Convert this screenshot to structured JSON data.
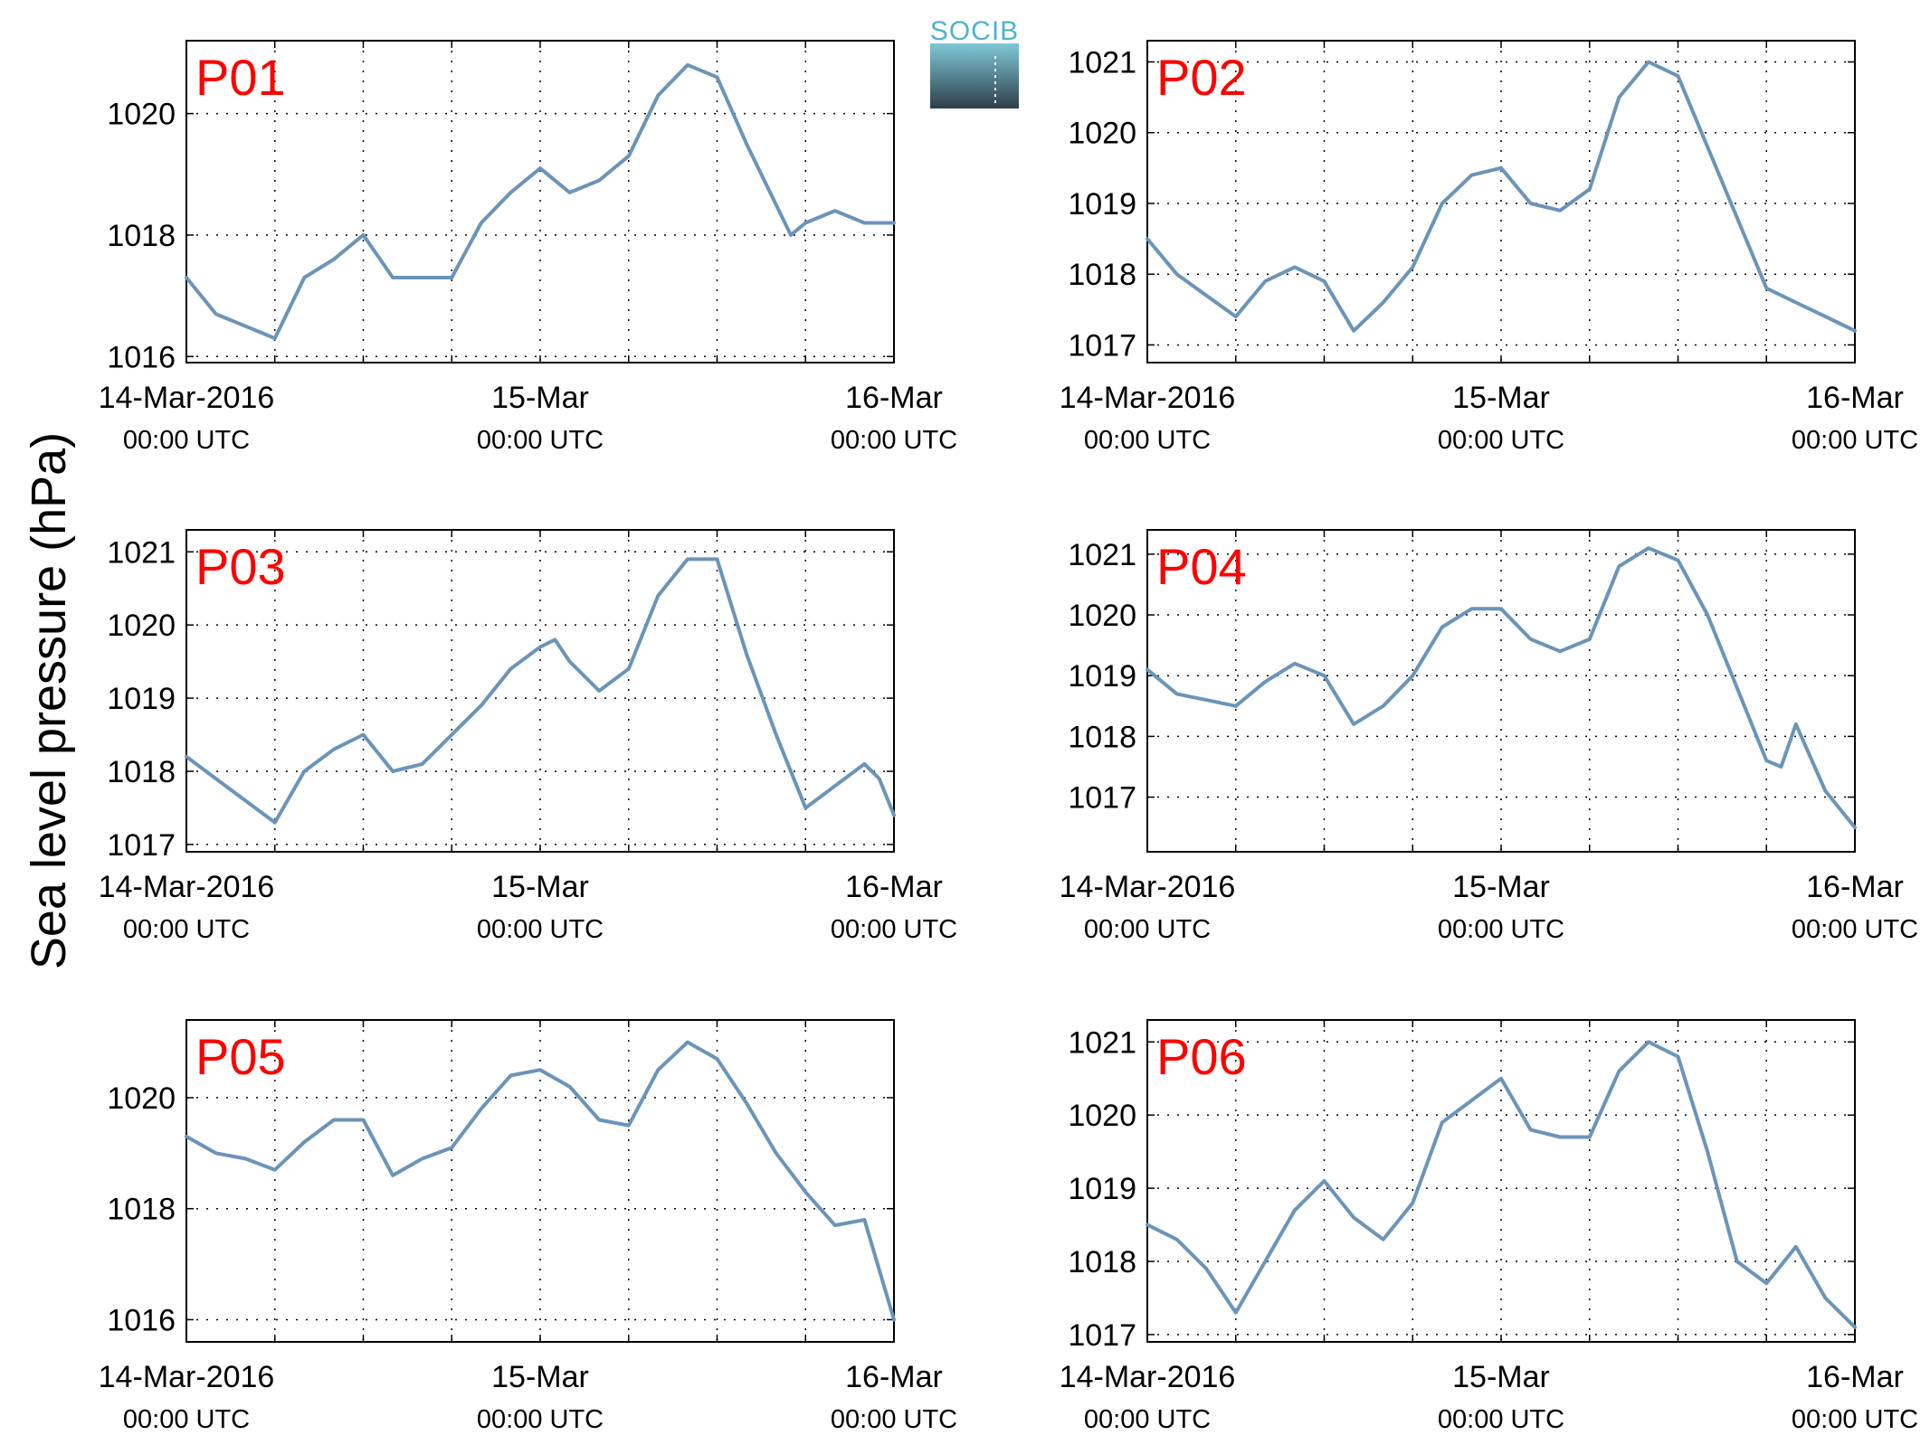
{
  "ylabel": "Sea level pressure (hPa)",
  "logo": {
    "text": "SOCIB",
    "text_color": "#4fb3c9",
    "top_color": "#7fc8d6",
    "bottom_color": "#2f3f4a"
  },
  "line_color": "#6b94b8",
  "chart_data": [
    {
      "type": "line",
      "panel": "P01",
      "ylim": [
        1015.9,
        1021.2
      ],
      "yticks": [
        1016,
        1018,
        1020
      ],
      "x_ticks": [
        {
          "date": "14-Mar-2016",
          "time": "00:00 UTC"
        },
        {
          "date": "15-Mar",
          "time": "00:00 UTC"
        },
        {
          "date": "16-Mar",
          "time": "00:00 UTC"
        }
      ],
      "x_hours": [
        0,
        6,
        12,
        18,
        24,
        30,
        36,
        42,
        48
      ],
      "series": [
        {
          "x": [
            0,
            2,
            4,
            6,
            8,
            10,
            12,
            14,
            16,
            18,
            20,
            22,
            24,
            26,
            28,
            30,
            32,
            34,
            36,
            38,
            40,
            41,
            42,
            44,
            46,
            48
          ],
          "y": [
            1017.3,
            1016.7,
            1016.5,
            1016.3,
            1017.3,
            1017.6,
            1018.0,
            1017.3,
            1017.3,
            1017.3,
            1018.2,
            1018.7,
            1019.1,
            1018.7,
            1018.9,
            1019.3,
            1020.3,
            1020.8,
            1020.6,
            1019.5,
            1018.5,
            1018.0,
            1018.2,
            1018.4,
            1018.2,
            1018.2
          ]
        }
      ]
    },
    {
      "type": "line",
      "panel": "P02",
      "ylim": [
        1016.75,
        1021.3
      ],
      "yticks": [
        1017,
        1018,
        1019,
        1020,
        1021
      ],
      "x_ticks": [
        {
          "date": "14-Mar-2016",
          "time": "00:00 UTC"
        },
        {
          "date": "15-Mar",
          "time": "00:00 UTC"
        },
        {
          "date": "16-Mar",
          "time": "00:00 UTC"
        }
      ],
      "x_hours": [
        0,
        6,
        12,
        18,
        24,
        30,
        36,
        42,
        48
      ],
      "series": [
        {
          "x": [
            0,
            2,
            4,
            6,
            8,
            10,
            12,
            14,
            16,
            18,
            20,
            22,
            24,
            26,
            28,
            30,
            32,
            34,
            36,
            38,
            40,
            42,
            44,
            46,
            48
          ],
          "y": [
            1018.5,
            1018.0,
            1017.7,
            1017.4,
            1017.9,
            1018.1,
            1017.9,
            1017.2,
            1017.6,
            1018.1,
            1019.0,
            1019.4,
            1019.5,
            1019.0,
            1018.9,
            1019.2,
            1020.5,
            1021.0,
            1020.8,
            1019.8,
            1018.8,
            1017.8,
            1017.6,
            1017.4,
            1017.2
          ]
        }
      ]
    },
    {
      "type": "line",
      "panel": "P03",
      "ylim": [
        1016.9,
        1021.3
      ],
      "yticks": [
        1017,
        1018,
        1019,
        1020,
        1021
      ],
      "x_ticks": [
        {
          "date": "14-Mar-2016",
          "time": "00:00 UTC"
        },
        {
          "date": "15-Mar",
          "time": "00:00 UTC"
        },
        {
          "date": "16-Mar",
          "time": "00:00 UTC"
        }
      ],
      "x_hours": [
        0,
        6,
        12,
        18,
        24,
        30,
        36,
        42,
        48
      ],
      "series": [
        {
          "x": [
            0,
            2,
            4,
            6,
            8,
            10,
            12,
            14,
            16,
            18,
            20,
            22,
            24,
            25,
            26,
            28,
            30,
            32,
            34,
            36,
            38,
            40,
            42,
            44,
            46,
            47,
            48
          ],
          "y": [
            1018.2,
            1017.9,
            1017.6,
            1017.3,
            1018.0,
            1018.3,
            1018.5,
            1018.0,
            1018.1,
            1018.5,
            1018.9,
            1019.4,
            1019.7,
            1019.8,
            1019.5,
            1019.1,
            1019.4,
            1020.4,
            1020.9,
            1020.9,
            1019.6,
            1018.5,
            1017.5,
            1017.8,
            1018.1,
            1017.9,
            1017.4
          ]
        }
      ]
    },
    {
      "type": "line",
      "panel": "P04",
      "ylim": [
        1016.1,
        1021.4
      ],
      "yticks": [
        1017,
        1018,
        1019,
        1020,
        1021
      ],
      "x_ticks": [
        {
          "date": "14-Mar-2016",
          "time": "00:00 UTC"
        },
        {
          "date": "15-Mar",
          "time": "00:00 UTC"
        },
        {
          "date": "16-Mar",
          "time": "00:00 UTC"
        }
      ],
      "x_hours": [
        0,
        6,
        12,
        18,
        24,
        30,
        36,
        42,
        48
      ],
      "series": [
        {
          "x": [
            0,
            2,
            4,
            6,
            8,
            10,
            12,
            14,
            16,
            18,
            20,
            22,
            24,
            26,
            28,
            30,
            32,
            34,
            36,
            38,
            40,
            42,
            43,
            44,
            46,
            48
          ],
          "y": [
            1019.1,
            1018.7,
            1018.6,
            1018.5,
            1018.9,
            1019.2,
            1019.0,
            1018.2,
            1018.5,
            1019.0,
            1019.8,
            1020.1,
            1020.1,
            1019.6,
            1019.4,
            1019.6,
            1020.8,
            1021.1,
            1020.9,
            1020.0,
            1018.8,
            1017.6,
            1017.5,
            1018.2,
            1017.1,
            1016.5
          ]
        }
      ]
    },
    {
      "type": "line",
      "panel": "P05",
      "ylim": [
        1015.6,
        1021.4
      ],
      "yticks": [
        1016,
        1018,
        1020
      ],
      "x_ticks": [
        {
          "date": "14-Mar-2016",
          "time": "00:00 UTC"
        },
        {
          "date": "15-Mar",
          "time": "00:00 UTC"
        },
        {
          "date": "16-Mar",
          "time": "00:00 UTC"
        }
      ],
      "x_hours": [
        0,
        6,
        12,
        18,
        24,
        30,
        36,
        42,
        48
      ],
      "series": [
        {
          "x": [
            0,
            2,
            4,
            6,
            8,
            10,
            12,
            14,
            16,
            18,
            20,
            22,
            24,
            26,
            28,
            30,
            32,
            34,
            36,
            38,
            40,
            42,
            44,
            46,
            48
          ],
          "y": [
            1019.3,
            1019.0,
            1018.9,
            1018.7,
            1019.2,
            1019.6,
            1019.6,
            1018.6,
            1018.9,
            1019.1,
            1019.8,
            1020.4,
            1020.5,
            1020.2,
            1019.6,
            1019.5,
            1020.5,
            1021.0,
            1020.7,
            1019.9,
            1019.0,
            1018.3,
            1017.7,
            1017.8,
            1016.0
          ]
        }
      ]
    },
    {
      "type": "line",
      "panel": "P06",
      "ylim": [
        1016.9,
        1021.3
      ],
      "yticks": [
        1017,
        1018,
        1019,
        1020,
        1021
      ],
      "x_ticks": [
        {
          "date": "14-Mar-2016",
          "time": "00:00 UTC"
        },
        {
          "date": "15-Mar",
          "time": "00:00 UTC"
        },
        {
          "date": "16-Mar",
          "time": "00:00 UTC"
        }
      ],
      "x_hours": [
        0,
        6,
        12,
        18,
        24,
        30,
        36,
        42,
        48
      ],
      "series": [
        {
          "x": [
            0,
            2,
            4,
            6,
            8,
            10,
            12,
            14,
            16,
            18,
            20,
            22,
            24,
            26,
            28,
            30,
            32,
            34,
            36,
            38,
            40,
            42,
            44,
            46,
            48
          ],
          "y": [
            1018.5,
            1018.3,
            1017.9,
            1017.3,
            1018.0,
            1018.7,
            1019.1,
            1018.6,
            1018.3,
            1018.8,
            1019.9,
            1020.2,
            1020.5,
            1019.8,
            1019.7,
            1019.7,
            1020.6,
            1021.0,
            1020.8,
            1019.5,
            1018.0,
            1017.7,
            1018.2,
            1017.5,
            1017.1
          ]
        }
      ]
    }
  ]
}
